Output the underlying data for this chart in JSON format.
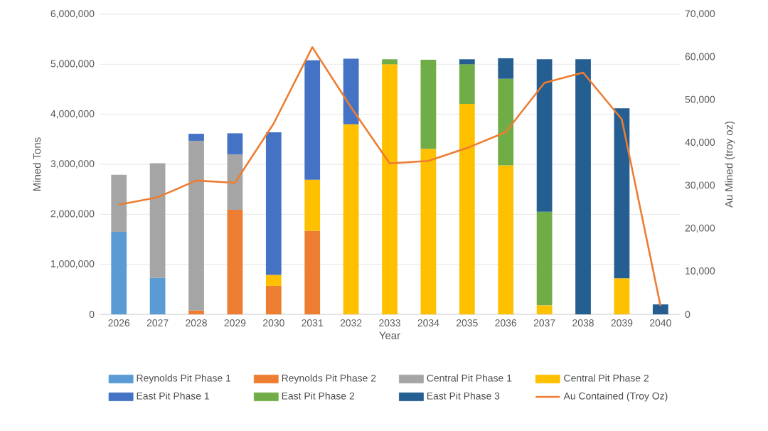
{
  "chart_data": {
    "type": "bar",
    "stacked": true,
    "xlabel": "Year",
    "ylabel": "Mined Tons",
    "y2label": "Au Mined (troy oz)",
    "categories": [
      "2026",
      "2027",
      "2028",
      "2029",
      "2030",
      "2031",
      "2032",
      "2033",
      "2034",
      "2035",
      "2036",
      "2037",
      "2038",
      "2039",
      "2040"
    ],
    "series": [
      {
        "name": "Reynolds Pit Phase 1",
        "color": "#5b9bd5",
        "values": [
          1650000,
          730000,
          null,
          null,
          null,
          null,
          null,
          null,
          null,
          null,
          null,
          null,
          null,
          null,
          null
        ]
      },
      {
        "name": "Reynolds Pit Phase 2",
        "color": "#ed7d31",
        "values": [
          null,
          null,
          80000,
          2090000,
          570000,
          1670000,
          null,
          null,
          null,
          null,
          null,
          null,
          null,
          null,
          null
        ]
      },
      {
        "name": "Central Pit Phase 1",
        "color": "#a5a5a5",
        "values": [
          1140000,
          2290000,
          3390000,
          1110000,
          null,
          null,
          null,
          null,
          null,
          null,
          null,
          null,
          null,
          null,
          null
        ]
      },
      {
        "name": "Central Pit Phase 2",
        "color": "#ffc000",
        "values": [
          null,
          null,
          null,
          null,
          220000,
          1020000,
          3800000,
          5000000,
          3310000,
          4210000,
          2980000,
          180000,
          null,
          720000,
          null
        ]
      },
      {
        "name": "East Pit Phase 1",
        "color": "#4472c4",
        "values": [
          null,
          null,
          140000,
          420000,
          2850000,
          2390000,
          1310000,
          null,
          null,
          null,
          null,
          null,
          null,
          null,
          null
        ]
      },
      {
        "name": "East Pit Phase 2",
        "color": "#70ad47",
        "values": [
          null,
          null,
          null,
          null,
          null,
          null,
          null,
          100000,
          1780000,
          790000,
          1730000,
          1870000,
          null,
          null,
          null
        ]
      },
      {
        "name": "East Pit Phase 3",
        "color": "#255e91",
        "values": [
          null,
          null,
          null,
          null,
          null,
          null,
          null,
          null,
          null,
          100000,
          410000,
          3050000,
          5100000,
          3400000,
          200000
        ]
      },
      {
        "name": "Au Contained (Troy Oz)",
        "type": "line",
        "axis": "y2",
        "color": "#ed7d31",
        "values": [
          25600,
          27300,
          31200,
          30700,
          44500,
          62300,
          48300,
          35200,
          35800,
          38800,
          42500,
          54000,
          56400,
          45500,
          2000
        ]
      }
    ],
    "ylim": [
      0,
      6000000
    ],
    "yticks": [
      0,
      {
        "value": 1000000,
        "label": "1,000,000"
      },
      {
        "value": 2000000,
        "label": "2,000,000"
      },
      {
        "value": 3000000,
        "label": "3,000,000"
      },
      {
        "value": 4000000,
        "label": "4,000,000"
      },
      {
        "value": 5000000,
        "label": "5,000,000"
      },
      {
        "value": 6000000,
        "label": "6,000,000"
      }
    ],
    "y2lim": [
      0,
      70000
    ],
    "y2ticks": [
      0,
      {
        "value": 10000,
        "label": "10,000"
      },
      {
        "value": 20000,
        "label": "20,000"
      },
      {
        "value": 30000,
        "label": "30,000"
      },
      {
        "value": 40000,
        "label": "40,000"
      },
      {
        "value": 50000,
        "label": "50,000"
      },
      {
        "value": 60000,
        "label": "60,000"
      },
      {
        "value": 70000,
        "label": "70,000"
      }
    ],
    "grid": "y",
    "legend": "bottom"
  }
}
